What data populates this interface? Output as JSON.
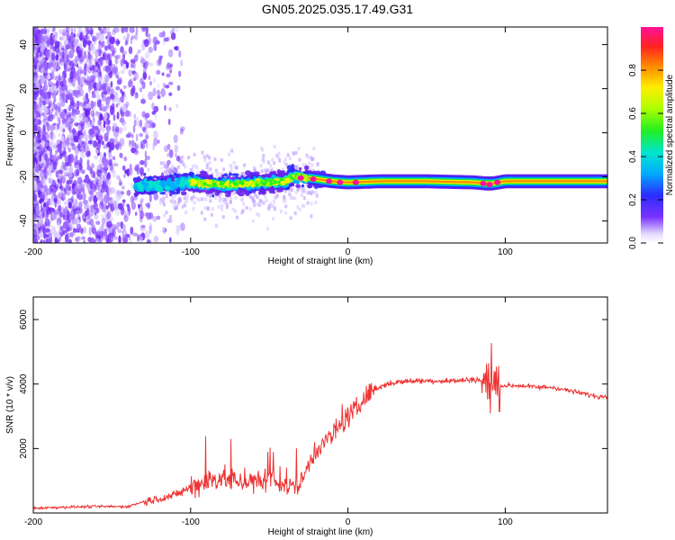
{
  "title": "GN05.2025.035.17.49.G31",
  "chart_data": [
    {
      "type": "heatmap",
      "xlabel": "Height of straight line (km)",
      "ylabel": "Frequency (Hz)",
      "xlim": [
        -200,
        165
      ],
      "ylim": [
        -50,
        48
      ],
      "x_ticks": [
        -200,
        -100,
        0,
        100
      ],
      "x_tick_labels": [
        "-200",
        "-100",
        "0",
        "100"
      ],
      "y_ticks": [
        -40,
        -20,
        0,
        20,
        40
      ],
      "y_tick_labels": [
        "-40",
        "-20",
        "0",
        "20",
        "40"
      ],
      "colorbar": {
        "label": "Normalized spectral amplitude",
        "range": [
          0,
          1
        ],
        "ticks": [
          0.0,
          0.2,
          0.4,
          0.6,
          0.8
        ],
        "tick_labels": [
          "0.0",
          "0.2",
          "0.4",
          "0.6",
          "0.8"
        ]
      },
      "signal_track": {
        "x": [
          -135,
          -120,
          -100,
          -80,
          -60,
          -40,
          -35,
          -25,
          -10,
          0,
          20,
          50,
          80,
          88,
          92,
          100,
          130,
          165
        ],
        "y": [
          -24,
          -24,
          -22.5,
          -23.5,
          -23,
          -22,
          -20,
          -20.5,
          -22,
          -22.5,
          -22,
          -22,
          -22.5,
          -23,
          -23,
          -22,
          -22,
          -22
        ]
      },
      "grid": false
    },
    {
      "type": "line",
      "xlabel": "Height of straight line (km)",
      "ylabel": "SNR (10 * v/v)",
      "xlim": [
        -200,
        165
      ],
      "ylim": [
        0,
        6700
      ],
      "x_ticks": [
        -200,
        -100,
        0,
        100
      ],
      "x_tick_labels": [
        "-200",
        "-100",
        "0",
        "100"
      ],
      "y_ticks": [
        2000,
        4000,
        6000
      ],
      "y_tick_labels": [
        "2000",
        "4000",
        "6000"
      ],
      "series": [
        {
          "color": "#ee3333",
          "x": [
            -200,
            -180,
            -160,
            -140,
            -130,
            -120,
            -110,
            -100,
            -90,
            -80,
            -70,
            -60,
            -50,
            -40,
            -35,
            -30,
            -25,
            -20,
            -15,
            -10,
            -5,
            0,
            5,
            10,
            15,
            20,
            25,
            30,
            40,
            50,
            60,
            70,
            80,
            85,
            90,
            95,
            100,
            110,
            120,
            130,
            140,
            150,
            160,
            165
          ],
          "y": [
            150,
            180,
            200,
            200,
            350,
            450,
            550,
            800,
            1000,
            1100,
            1000,
            950,
            950,
            900,
            800,
            900,
            1500,
            2000,
            2200,
            2400,
            2700,
            3000,
            3200,
            3500,
            3800,
            3900,
            4000,
            4050,
            4100,
            4100,
            4100,
            4100,
            4150,
            4100,
            4000,
            3950,
            3950,
            3950,
            3900,
            3900,
            3800,
            3700,
            3600,
            3650
          ]
        }
      ],
      "grid": false
    }
  ]
}
